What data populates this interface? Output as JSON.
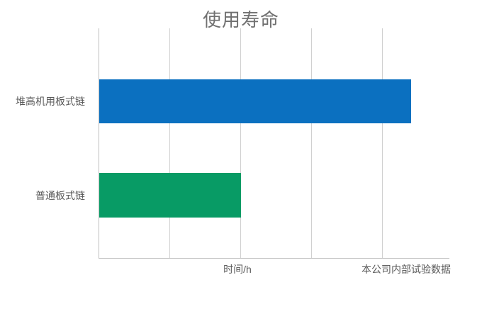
{
  "title": "使用寿命",
  "x_axis": {
    "label": "时间/h"
  },
  "annotation": "本公司内部试验数据",
  "colors": {
    "bar_blue": "#0b70c0",
    "bar_green": "#089b65",
    "axis_line": "#bfbfbf",
    "gridline": "#d0d0d0",
    "title_text": "#707070",
    "label_text": "#595959"
  },
  "bars": [
    {
      "label": "堆高机用板式链",
      "width_pct": "89.1%",
      "color": "#0b70c0"
    },
    {
      "label": "普通板式链",
      "width_pct": "40.5%",
      "color": "#089b65"
    }
  ],
  "chart_data": {
    "type": "bar",
    "orientation": "horizontal",
    "title": "使用寿命",
    "categories": [
      "堆高机用板式链",
      "普通板式链"
    ],
    "series": [
      {
        "name": "使用寿命",
        "values": [
          4.4,
          2.0
        ]
      }
    ],
    "values_note": "no numeric axis tick labels visible; values estimated in gridline units (1 unit = 1 gridline spacing)",
    "xlabel": "时间/h",
    "ylabel": "",
    "xlim": [
      0,
      4.94
    ],
    "x_tick_interval": 1,
    "axis_numeric_labels_visible": false,
    "grid": "vertical gridlines only",
    "legend": "none",
    "bar_colors": [
      "#0b70c0",
      "#089b65"
    ],
    "annotation_bottom_right": "本公司内部试验数据"
  }
}
